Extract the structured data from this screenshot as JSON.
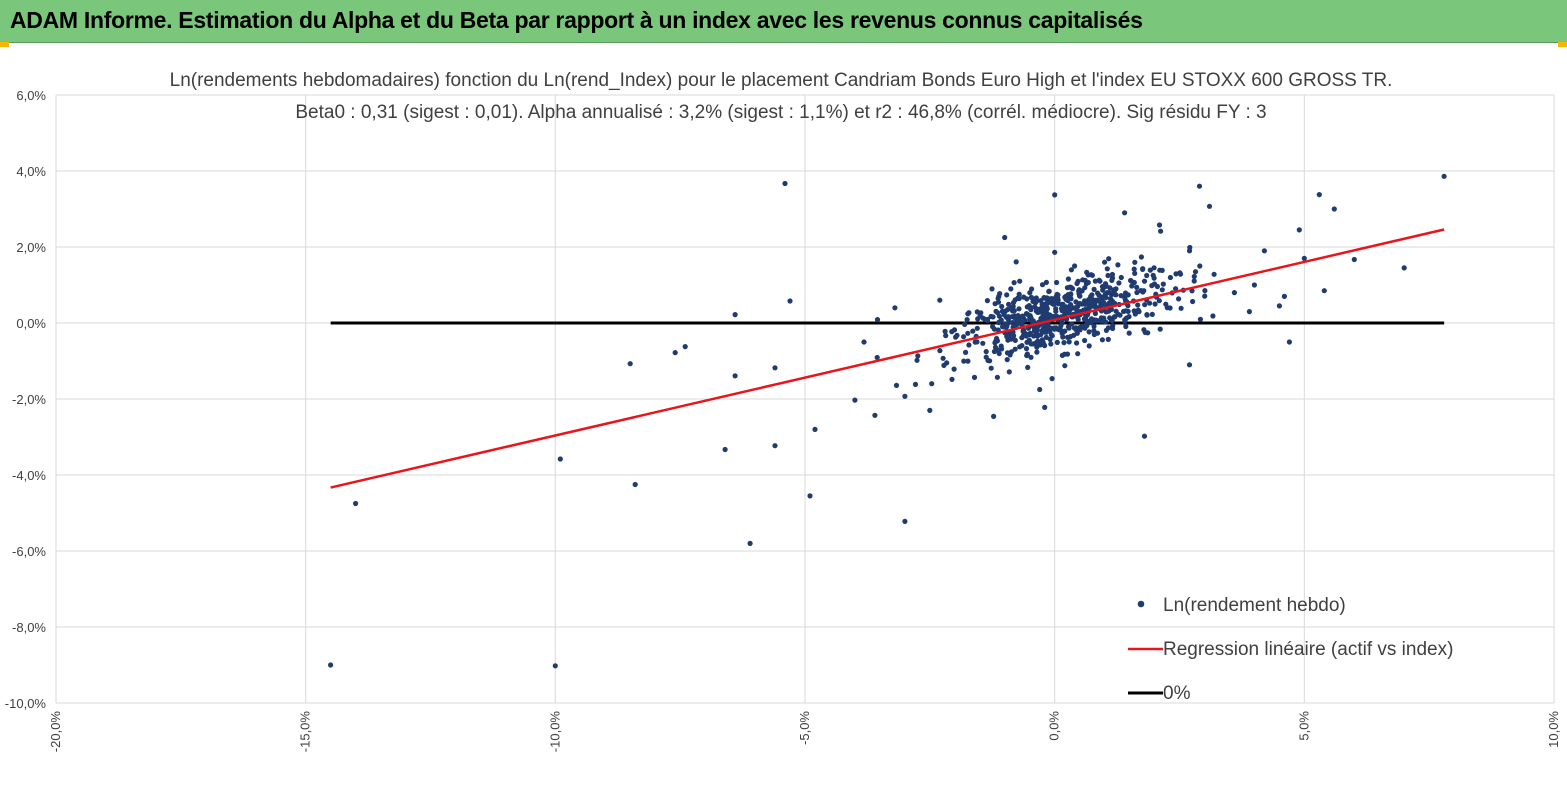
{
  "header": {
    "title": "ADAM Informe. Estimation du Alpha et du Beta par rapport à un index avec les revenus connus capitalisés"
  },
  "colors": {
    "header_bg": "#7ac67b",
    "points": "#1f3b70",
    "regression": "#e8161b",
    "zero_line": "#000000",
    "grid": "#d9d9d9"
  },
  "chart_data": {
    "type": "scatter",
    "title_line1": "Ln(rendements hebdomadaires) fonction du Ln(rend_Index) pour le placement Candriam Bonds Euro High  et l'index EU STOXX 600 GROSS TR.",
    "title_line2": "Beta0 : 0,31 (sigest : 0,01). Alpha annualisé : 3,2% (sigest : 1,1%) et r2 : 46,8% (corrél. médiocre). Sig résidu FY : 3",
    "xlim": [
      -20,
      10
    ],
    "ylim": [
      -10,
      6
    ],
    "x_ticks": [
      -20,
      -15,
      -10,
      -5,
      0,
      5,
      10
    ],
    "y_ticks": [
      -10,
      -8,
      -6,
      -4,
      -2,
      0,
      2,
      4,
      6
    ],
    "x_tick_labels": [
      "-20,0%",
      "-15,0%",
      "-10,0%",
      "-5,0%",
      "0,0%",
      "5,0%",
      "10,0%"
    ],
    "y_tick_labels": [
      "-10,0%",
      "-8,0%",
      "-6,0%",
      "-4,0%",
      "-2,0%",
      "0,0%",
      "2,0%",
      "4,0%",
      "6,0%"
    ],
    "legend": [
      {
        "label": "Ln(rendement hebdo)",
        "kind": "marker"
      },
      {
        "label": "Regression linéaire (actif vs index)",
        "kind": "line-red"
      },
      {
        "label": "0%",
        "kind": "line-black"
      }
    ],
    "regression": {
      "x": [
        -14.5,
        7.8
      ],
      "y": [
        -4.33,
        2.46
      ]
    },
    "zero_line": {
      "x": [
        -14.5,
        7.8
      ],
      "y": [
        0,
        0
      ]
    },
    "outliers": [
      [
        -14.5,
        -9.0
      ],
      [
        -14.0,
        -4.75
      ],
      [
        -10.0,
        -9.02
      ],
      [
        -9.9,
        -3.58
      ],
      [
        -8.5,
        -1.07
      ],
      [
        -8.4,
        -4.25
      ],
      [
        -7.6,
        -0.78
      ],
      [
        -7.4,
        -0.62
      ],
      [
        -6.4,
        0.22
      ],
      [
        -6.4,
        -1.39
      ],
      [
        -6.6,
        -3.33
      ],
      [
        -6.1,
        -5.8
      ],
      [
        -5.4,
        3.67
      ],
      [
        -5.3,
        0.58
      ],
      [
        -5.6,
        -3.23
      ],
      [
        -5.6,
        -1.18
      ],
      [
        -4.9,
        -4.55
      ],
      [
        -4.8,
        -2.8
      ],
      [
        -4.0,
        -2.03
      ],
      [
        -3.6,
        -2.43
      ],
      [
        -3.0,
        -5.22
      ],
      [
        -3.0,
        -1.93
      ],
      [
        -2.5,
        -2.3
      ],
      [
        -1.0,
        2.25
      ],
      [
        -0.2,
        -2.22
      ],
      [
        -0.3,
        -1.75
      ],
      [
        0.0,
        3.37
      ],
      [
        0.0,
        1.86
      ],
      [
        1.4,
        2.9
      ],
      [
        1.8,
        -2.98
      ],
      [
        2.1,
        2.58
      ],
      [
        2.9,
        3.6
      ],
      [
        3.1,
        3.07
      ],
      [
        2.7,
        -1.1
      ],
      [
        2.7,
        1.9
      ],
      [
        4.0,
        1.0
      ],
      [
        4.2,
        1.9
      ],
      [
        4.7,
        -0.5
      ],
      [
        4.9,
        2.45
      ],
      [
        5.0,
        1.7
      ],
      [
        5.3,
        3.38
      ],
      [
        5.6,
        3.0
      ],
      [
        5.4,
        0.85
      ],
      [
        6.0,
        1.67
      ],
      [
        7.0,
        1.45
      ],
      [
        7.8,
        3.86
      ],
      [
        4.6,
        0.7
      ],
      [
        4.5,
        0.45
      ],
      [
        3.6,
        0.8
      ],
      [
        3.9,
        0.3
      ],
      [
        -0.7,
        1.1
      ],
      [
        0.4,
        1.5
      ],
      [
        1.0,
        1.6
      ],
      [
        -3.2,
        0.4
      ],
      [
        -2.3,
        0.6
      ]
    ],
    "cluster": {
      "n": 640,
      "x_mean": 0.2,
      "x_sd": 1.15,
      "beta": 0.31,
      "alpha": 0.18,
      "resid_sd": 0.48,
      "seed": 7
    }
  }
}
